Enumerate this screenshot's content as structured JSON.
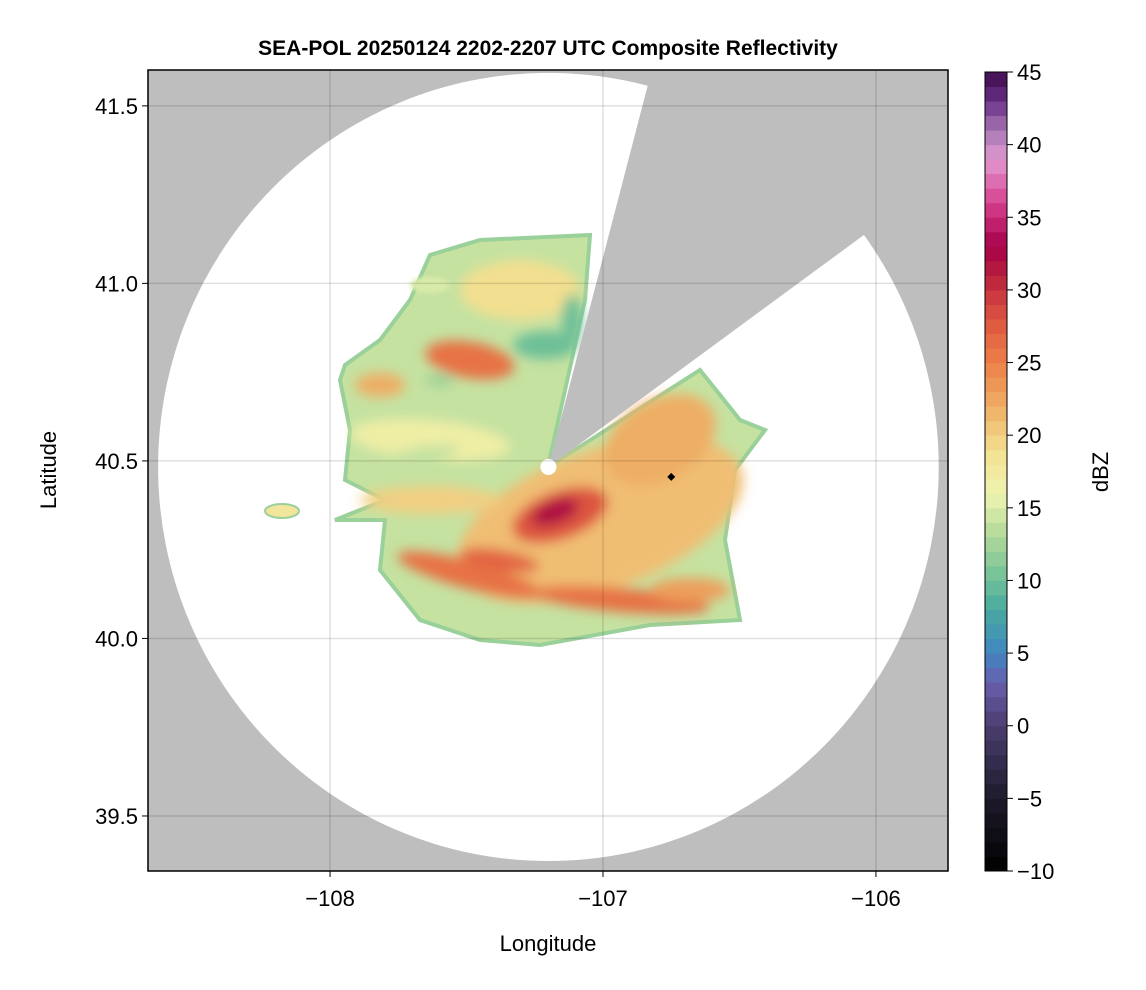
{
  "chart_data": {
    "type": "heatmap",
    "title": "SEA-POL 20250124 2202-2207 UTC Composite Reflectivity",
    "xlabel": "Longitude",
    "ylabel": "Latitude",
    "xlim": [
      -108.667,
      -105.736
    ],
    "ylim": [
      39.345,
      41.601
    ],
    "xticks": [
      -108,
      -107,
      -106
    ],
    "xtick_labels": [
      "−108",
      "−107",
      "−106"
    ],
    "yticks": [
      39.5,
      40.0,
      40.5,
      41.0,
      41.5
    ],
    "ytick_labels": [
      "39.5",
      "40.0",
      "40.5",
      "41.0",
      "41.5"
    ],
    "grid": true,
    "radar_center": {
      "lon": -107.2,
      "lat": 40.483
    },
    "range_ring_deg": {
      "lon": 1.43,
      "lat": 1.11
    },
    "blocked_sector": [
      {
        "lon": -106.845,
        "lat": 41.531
      },
      {
        "lon": -106.066,
        "lat": 41.124
      }
    ],
    "marker": {
      "lon": -106.75,
      "lat": 40.455,
      "shape": "diamond"
    },
    "no_data_color": "#bebebe",
    "colorbar": {
      "label": "dBZ",
      "range": [
        -10,
        45
      ],
      "step": 1,
      "ticks": [
        -10,
        -5,
        0,
        5,
        10,
        15,
        20,
        25,
        30,
        35,
        40,
        45
      ],
      "tick_labels": [
        "−10",
        "−5",
        "0",
        "5",
        "10",
        "15",
        "20",
        "25",
        "30",
        "35",
        "40",
        "45"
      ],
      "stops": [
        [
          -10,
          "#000000"
        ],
        [
          -5,
          "#1e1a2b"
        ],
        [
          0,
          "#4a3d70"
        ],
        [
          3,
          "#6a5eae"
        ],
        [
          5,
          "#3f86bf"
        ],
        [
          8,
          "#48a9a0"
        ],
        [
          10,
          "#6dbf98"
        ],
        [
          13,
          "#b0d89a"
        ],
        [
          16,
          "#eef5b0"
        ],
        [
          19,
          "#f3df90"
        ],
        [
          22,
          "#eeae65"
        ],
        [
          25,
          "#ec8048"
        ],
        [
          28,
          "#dd5540"
        ],
        [
          31,
          "#b8203e"
        ],
        [
          33,
          "#a50048"
        ],
        [
          36,
          "#d6408f"
        ],
        [
          39,
          "#e29ad0"
        ],
        [
          41,
          "#a676b3"
        ],
        [
          43,
          "#6a3088"
        ],
        [
          45,
          "#3d0a4a"
        ]
      ]
    }
  }
}
